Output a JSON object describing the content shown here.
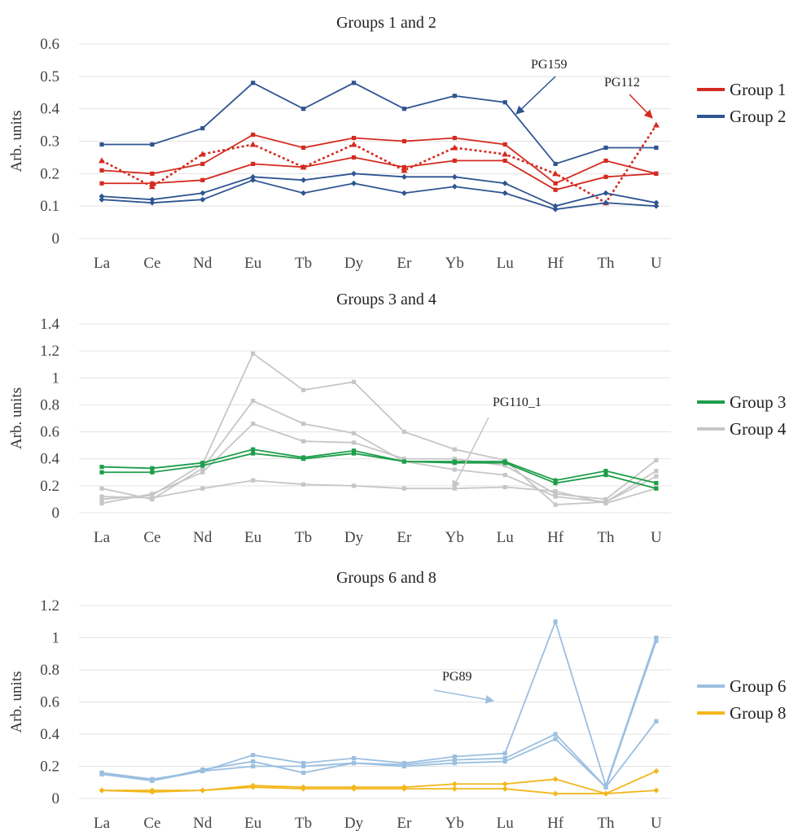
{
  "chart_data": [
    {
      "type": "line",
      "title": "Groups 1 and 2",
      "ylabel": "Arb. units",
      "ylim": [
        0,
        0.6
      ],
      "yticks": [
        "0",
        "0.1",
        "0.2",
        "0.3",
        "0.4",
        "0.5",
        "0.6"
      ],
      "categories": [
        "La",
        "Ce",
        "Nd",
        "Eu",
        "Tb",
        "Dy",
        "Er",
        "Yb",
        "Lu",
        "Hf",
        "Th",
        "U"
      ],
      "grid": true,
      "legend": [
        "Group 1",
        "Group 2"
      ],
      "legend_position": "right",
      "colors": {
        "Group 1": "#d42a1f",
        "Group 2": "#2e5591"
      },
      "series": [
        {
          "group": "Group 1",
          "style": "solid",
          "marker": "square",
          "values": [
            0.21,
            0.2,
            0.23,
            0.32,
            0.28,
            0.31,
            0.3,
            0.31,
            0.29,
            0.17,
            0.24,
            0.2
          ]
        },
        {
          "group": "Group 1",
          "style": "solid",
          "marker": "square",
          "values": [
            0.17,
            0.17,
            0.18,
            0.23,
            0.22,
            0.25,
            0.22,
            0.24,
            0.24,
            0.15,
            0.19,
            0.2
          ]
        },
        {
          "group": "Group 1",
          "label": "PG112",
          "style": "dotted",
          "marker": "triangle",
          "values": [
            0.24,
            0.16,
            0.26,
            0.29,
            0.22,
            0.29,
            0.21,
            0.28,
            0.26,
            0.2,
            0.11,
            0.35
          ]
        },
        {
          "group": "Group 2",
          "label": "PG159",
          "style": "solid",
          "marker": "square",
          "values": [
            0.29,
            0.29,
            0.34,
            0.48,
            0.4,
            0.48,
            0.4,
            0.44,
            0.42,
            0.23,
            0.28,
            0.28
          ]
        },
        {
          "group": "Group 2",
          "style": "solid",
          "marker": "diamond",
          "values": [
            0.13,
            0.12,
            0.14,
            0.19,
            0.18,
            0.2,
            0.19,
            0.19,
            0.17,
            0.1,
            0.14,
            0.11
          ]
        },
        {
          "group": "Group 2",
          "style": "solid",
          "marker": "diamond",
          "values": [
            0.12,
            0.11,
            0.12,
            0.18,
            0.14,
            0.17,
            0.14,
            0.16,
            0.14,
            0.09,
            0.11,
            0.1
          ]
        }
      ],
      "annotations": [
        "PG159",
        "PG112"
      ]
    },
    {
      "type": "line",
      "title": "Groups 3 and 4",
      "ylabel": "Arb. units",
      "ylim": [
        0,
        1.4
      ],
      "yticks": [
        "0",
        "0.2",
        "0.4",
        "0.6",
        "0.8",
        "1",
        "1.2",
        "1.4"
      ],
      "categories": [
        "La",
        "Ce",
        "Nd",
        "Eu",
        "Tb",
        "Dy",
        "Er",
        "Yb",
        "Lu",
        "Hf",
        "Th",
        "U"
      ],
      "grid": true,
      "legend": [
        "Group 3",
        "Group 4"
      ],
      "legend_position": "right",
      "colors": {
        "Group 3": "#1e9e4a",
        "Group 4": "#c6c6c6"
      },
      "series": [
        {
          "group": "Group 4",
          "style": "solid",
          "marker": "square",
          "values": [
            0.1,
            0.13,
            0.36,
            1.18,
            0.91,
            0.97,
            0.6,
            0.47,
            0.39,
            0.06,
            0.08,
            0.31
          ]
        },
        {
          "group": "Group 4",
          "style": "solid",
          "marker": "square",
          "values": [
            0.18,
            0.1,
            0.33,
            0.83,
            0.66,
            0.59,
            0.38,
            0.32,
            0.28,
            0.12,
            0.08,
            0.27
          ]
        },
        {
          "group": "Group 4",
          "label": "PG110_1",
          "style": "solid",
          "marker": "square",
          "values": [
            0.07,
            0.14,
            0.3,
            0.66,
            0.53,
            0.52,
            0.4,
            0.4,
            0.35,
            0.14,
            0.1,
            0.39
          ]
        },
        {
          "group": "Group 4",
          "style": "solid",
          "marker": "square",
          "values": [
            0.12,
            0.11,
            0.18,
            0.24,
            0.21,
            0.2,
            0.18,
            0.18,
            0.19,
            0.16,
            0.07,
            0.18
          ]
        },
        {
          "group": "Group 3",
          "style": "solid",
          "marker": "square",
          "values": [
            0.34,
            0.33,
            0.37,
            0.47,
            0.41,
            0.46,
            0.38,
            0.38,
            0.38,
            0.24,
            0.31,
            0.22
          ]
        },
        {
          "group": "Group 3",
          "style": "solid",
          "marker": "square",
          "values": [
            0.3,
            0.3,
            0.35,
            0.44,
            0.4,
            0.44,
            0.38,
            0.37,
            0.37,
            0.22,
            0.28,
            0.18
          ]
        }
      ],
      "annotations": [
        "PG110_1"
      ]
    },
    {
      "type": "line",
      "title": "Groups 6 and 8",
      "ylabel": "Arb. units",
      "ylim": [
        0,
        1.2
      ],
      "yticks": [
        "0",
        "0.2",
        "0.4",
        "0.6",
        "0.8",
        "1",
        "1.2"
      ],
      "categories": [
        "La",
        "Ce",
        "Nd",
        "Eu",
        "Tb",
        "Dy",
        "Er",
        "Yb",
        "Lu",
        "Hf",
        "Th",
        "U"
      ],
      "grid": true,
      "legend": [
        "Group 6",
        "Group 8"
      ],
      "legend_position": "right",
      "colors": {
        "Group 6": "#9bbfe0",
        "Group 8": "#f2b71c"
      },
      "series": [
        {
          "group": "Group 6",
          "label": "PG89",
          "style": "solid",
          "marker": "square",
          "values": [
            0.16,
            0.12,
            0.17,
            0.27,
            0.22,
            0.25,
            0.22,
            0.26,
            0.28,
            1.1,
            0.08,
            1.0
          ]
        },
        {
          "group": "Group 6",
          "style": "solid",
          "marker": "square",
          "values": [
            0.16,
            0.11,
            0.18,
            0.23,
            0.16,
            0.22,
            0.21,
            0.24,
            0.25,
            0.4,
            0.07,
            0.98
          ]
        },
        {
          "group": "Group 6",
          "style": "solid",
          "marker": "square",
          "values": [
            0.15,
            0.11,
            0.17,
            0.2,
            0.2,
            0.22,
            0.2,
            0.22,
            0.23,
            0.37,
            0.07,
            0.48
          ]
        },
        {
          "group": "Group 8",
          "style": "solid",
          "marker": "diamond",
          "values": [
            0.05,
            0.05,
            0.05,
            0.08,
            0.07,
            0.07,
            0.07,
            0.09,
            0.09,
            0.12,
            0.03,
            0.17
          ]
        },
        {
          "group": "Group 8",
          "style": "solid",
          "marker": "diamond",
          "values": [
            0.05,
            0.04,
            0.05,
            0.07,
            0.06,
            0.06,
            0.06,
            0.06,
            0.06,
            0.03,
            0.03,
            0.05
          ]
        }
      ],
      "annotations": [
        "PG89"
      ]
    }
  ]
}
